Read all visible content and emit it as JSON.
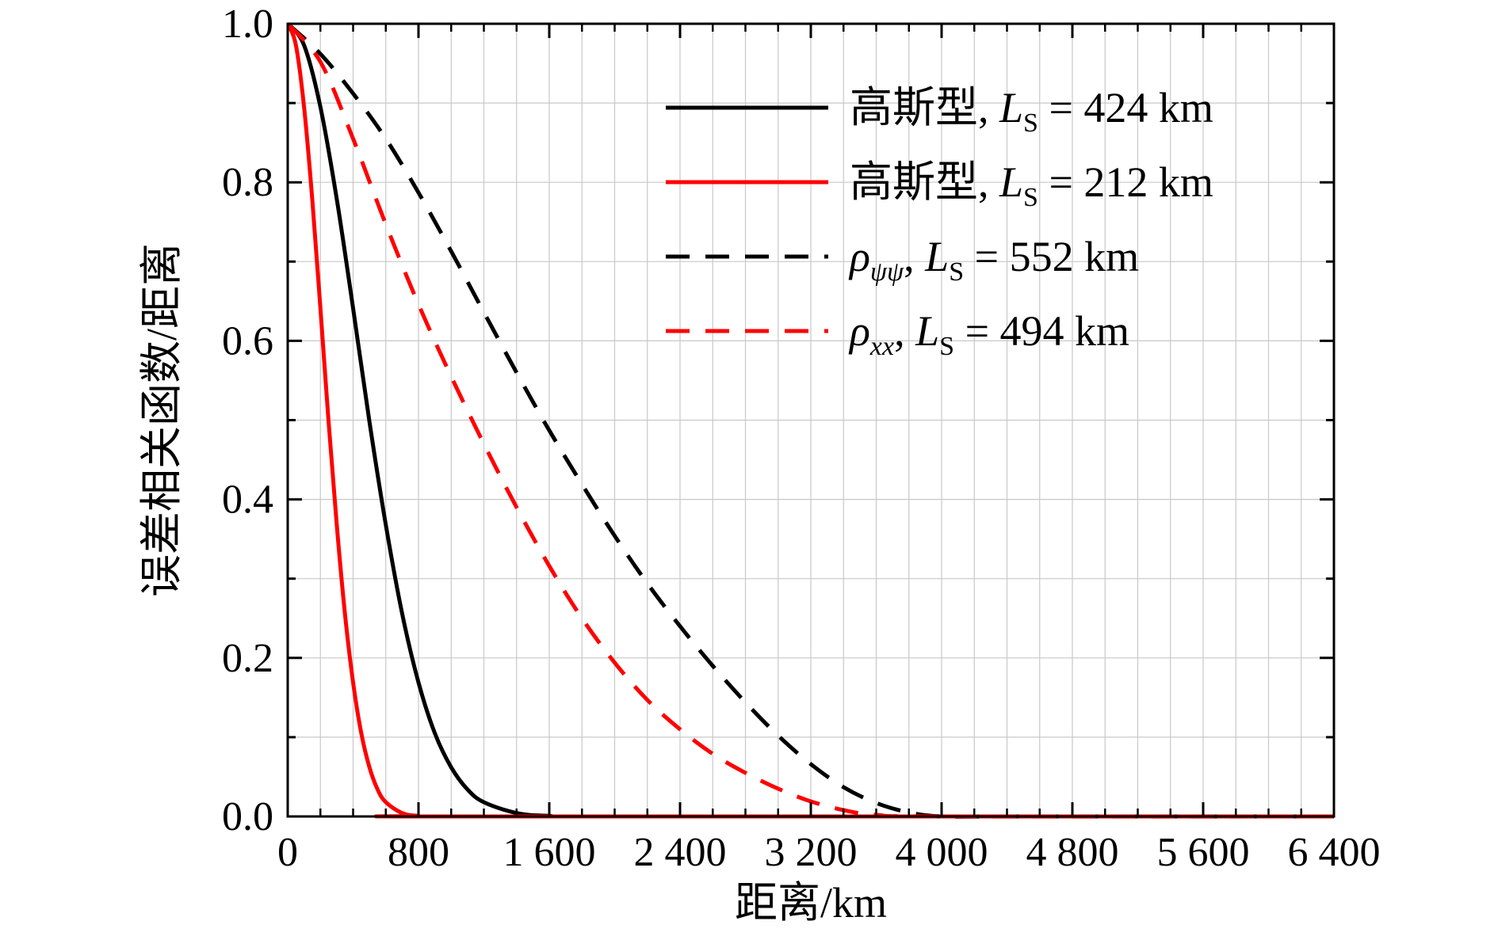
{
  "chart_data": {
    "type": "line",
    "xlabel": "距离/km",
    "ylabel": "误差相关函数/距离",
    "xlim": [
      0,
      6400
    ],
    "ylim": [
      0,
      1.0
    ],
    "xticks": [
      0,
      800,
      1600,
      2400,
      3200,
      4000,
      4800,
      5600,
      6400
    ],
    "xtick_labels": [
      "0",
      "800",
      "1 600",
      "2 400",
      "3 200",
      "4 000",
      "4 800",
      "5 600",
      "6 400"
    ],
    "yticks": [
      0.0,
      0.2,
      0.4,
      0.6,
      0.8,
      1.0
    ],
    "ytick_labels": [
      "0.0",
      "0.2",
      "0.4",
      "0.6",
      "0.8",
      "1.0"
    ],
    "grid": true,
    "legend_position": "top-right",
    "series": [
      {
        "name": "高斯型, L_S = 424 km",
        "legend": {
          "prefix": "高斯型",
          "italic": "",
          "sub": "",
          "value": "424 km"
        },
        "color": "#000000",
        "dash": "solid",
        "x": [
          0,
          100,
          200,
          300,
          400,
          500,
          600,
          700,
          800,
          900,
          1000,
          1100,
          1200,
          1400,
          1600,
          2000,
          6400
        ],
        "y": [
          1.0,
          0.973,
          0.895,
          0.779,
          0.641,
          0.498,
          0.368,
          0.256,
          0.169,
          0.105,
          0.062,
          0.034,
          0.018,
          0.0043,
          0.0008,
          0.0,
          0.0
        ]
      },
      {
        "name": "高斯型, L_S = 212 km",
        "legend": {
          "prefix": "高斯型",
          "italic": "",
          "sub": "",
          "value": "212 km"
        },
        "color": "#ff0000",
        "dash": "solid",
        "x": [
          0,
          50,
          100,
          150,
          200,
          250,
          300,
          350,
          400,
          450,
          500,
          550,
          600,
          700,
          800,
          1000,
          6400
        ],
        "y": [
          1.0,
          0.973,
          0.895,
          0.779,
          0.641,
          0.498,
          0.368,
          0.256,
          0.169,
          0.105,
          0.062,
          0.034,
          0.018,
          0.0043,
          0.0008,
          0.0,
          0.0
        ]
      },
      {
        "name": "ρ_ψψ, L_S = 552 km",
        "legend": {
          "prefix": "",
          "italic": "ρ",
          "sub": "ψψ",
          "value": "552 km"
        },
        "color": "#000000",
        "dash": "dashed",
        "x": [
          0,
          200,
          400,
          600,
          800,
          1000,
          1200,
          1400,
          1600,
          1800,
          2000,
          2200,
          2400,
          2600,
          2800,
          3000,
          3200,
          3400,
          3600,
          3800,
          4000,
          4400,
          6400
        ],
        "y": [
          1.0,
          0.962,
          0.912,
          0.855,
          0.787,
          0.713,
          0.636,
          0.56,
          0.487,
          0.419,
          0.354,
          0.294,
          0.24,
          0.19,
          0.144,
          0.102,
          0.066,
          0.037,
          0.017,
          0.005,
          0.0,
          0.0,
          0.0
        ]
      },
      {
        "name": "ρ_xx, L_S = 494 km",
        "legend": {
          "prefix": "",
          "italic": "ρ",
          "sub": "xx",
          "value": "494 km"
        },
        "color": "#ff0000",
        "dash": "dashed",
        "x": [
          0,
          200,
          400,
          600,
          800,
          1000,
          1200,
          1400,
          1600,
          1800,
          2000,
          2200,
          2400,
          2600,
          2800,
          3000,
          3200,
          3400,
          3600,
          4000,
          6400
        ],
        "y": [
          1.0,
          0.952,
          0.855,
          0.747,
          0.646,
          0.555,
          0.47,
          0.39,
          0.316,
          0.25,
          0.194,
          0.147,
          0.11,
          0.079,
          0.055,
          0.035,
          0.019,
          0.008,
          0.002,
          0.0,
          0.0
        ]
      }
    ]
  }
}
